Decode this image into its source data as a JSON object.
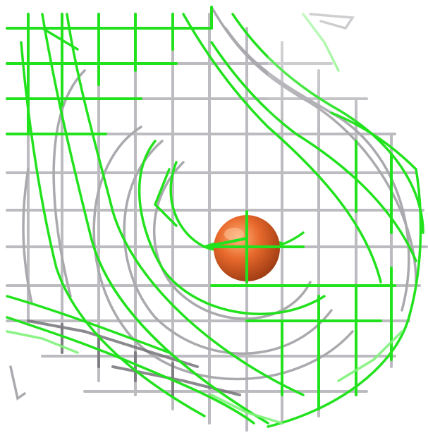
{
  "scene": {
    "description_shown": "",
    "colors": {
      "background": "#ffffff",
      "mesh_green": "#22e21d",
      "mesh_green_light": "#7ff27a",
      "mesh_grey": "#b9b9bd",
      "mesh_grey_dark": "#6e6e73",
      "sphere": "#e8692c",
      "sphere_highlight": "#ffb27a",
      "sphere_shadow": "#9b3a12"
    },
    "icons": [
      "electron-density-mesh",
      "atom-sphere"
    ]
  }
}
